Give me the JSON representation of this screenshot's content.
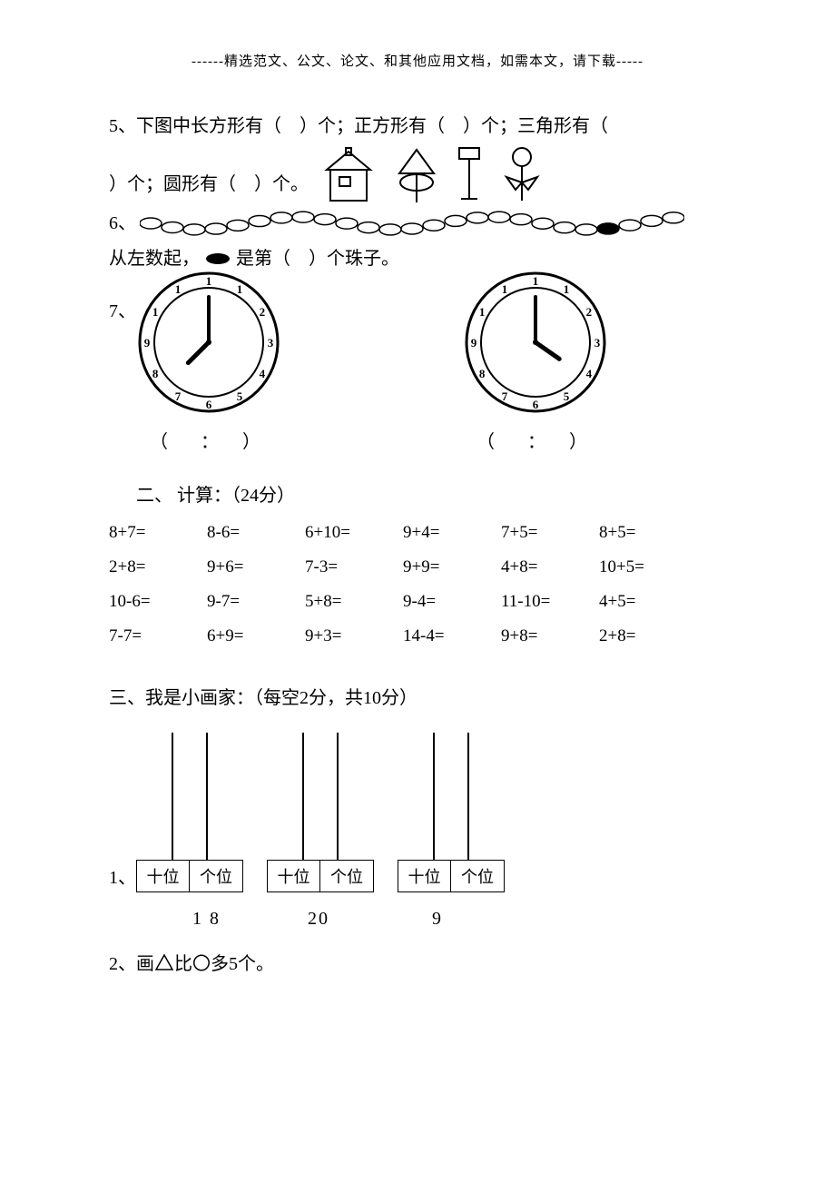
{
  "header": "------精选范文、公文、论文、和其他应用文档，如需本文，请下载-----",
  "q5": {
    "prefix": "5、",
    "line1": "下图中长方形有（　）个；正方形有（　）个；三角形有（",
    "line2_text": "）个；圆形有（　）个。",
    "shapes": {
      "house_stroke": "#000000",
      "tree_stroke": "#000000",
      "sign_stroke": "#000000",
      "flower_stroke": "#000000"
    }
  },
  "q6": {
    "prefix": "6、",
    "bead_count": 25,
    "filled_index": 21,
    "line2": "从左数起，　　是第（　）个珠子。",
    "bead_border": "#000000",
    "bead_fill_empty": "#ffffff",
    "bead_fill_filled": "#000000"
  },
  "q7": {
    "prefix": "7、",
    "clock_numbers": [
      "1",
      "1",
      "1",
      "2",
      "3",
      "4",
      "5",
      "6",
      "7",
      "8",
      "9",
      "1",
      "1"
    ],
    "clock1": {
      "hour_angle": 225,
      "minute_angle": 0
    },
    "clock2": {
      "hour_angle": 125,
      "minute_angle": 0
    },
    "caption": "（　：　）",
    "stroke": "#000000"
  },
  "section2": {
    "title": "二、 计算：（24分）",
    "rows": [
      [
        "8+7=",
        "8-6=",
        "6+10=",
        "9+4=",
        "7+5=",
        "8+5="
      ],
      [
        "2+8=",
        "9+6=",
        "7-3=",
        "9+9=",
        "4+8=",
        "10+5="
      ],
      [
        "10-6=",
        "9-7=",
        "5+8=",
        "9-4=",
        "11-10=",
        "4+5="
      ],
      [
        "7-7=",
        "6+9=",
        "9+3=",
        "14-4=",
        "9+8=",
        "2+8="
      ]
    ]
  },
  "section3": {
    "title": "三、我是小画家：（每空2分，共10分）",
    "q1_prefix": "1、",
    "abacus_labels": {
      "tens": "十位",
      "ones": "个位"
    },
    "numbers": [
      "1 8",
      "20",
      "9"
    ],
    "q2_prefix": "2、",
    "q2_text_a": "画",
    "q2_text_b": "比〇多5个。"
  },
  "colors": {
    "text": "#000000",
    "background": "#ffffff",
    "border": "#000000"
  }
}
